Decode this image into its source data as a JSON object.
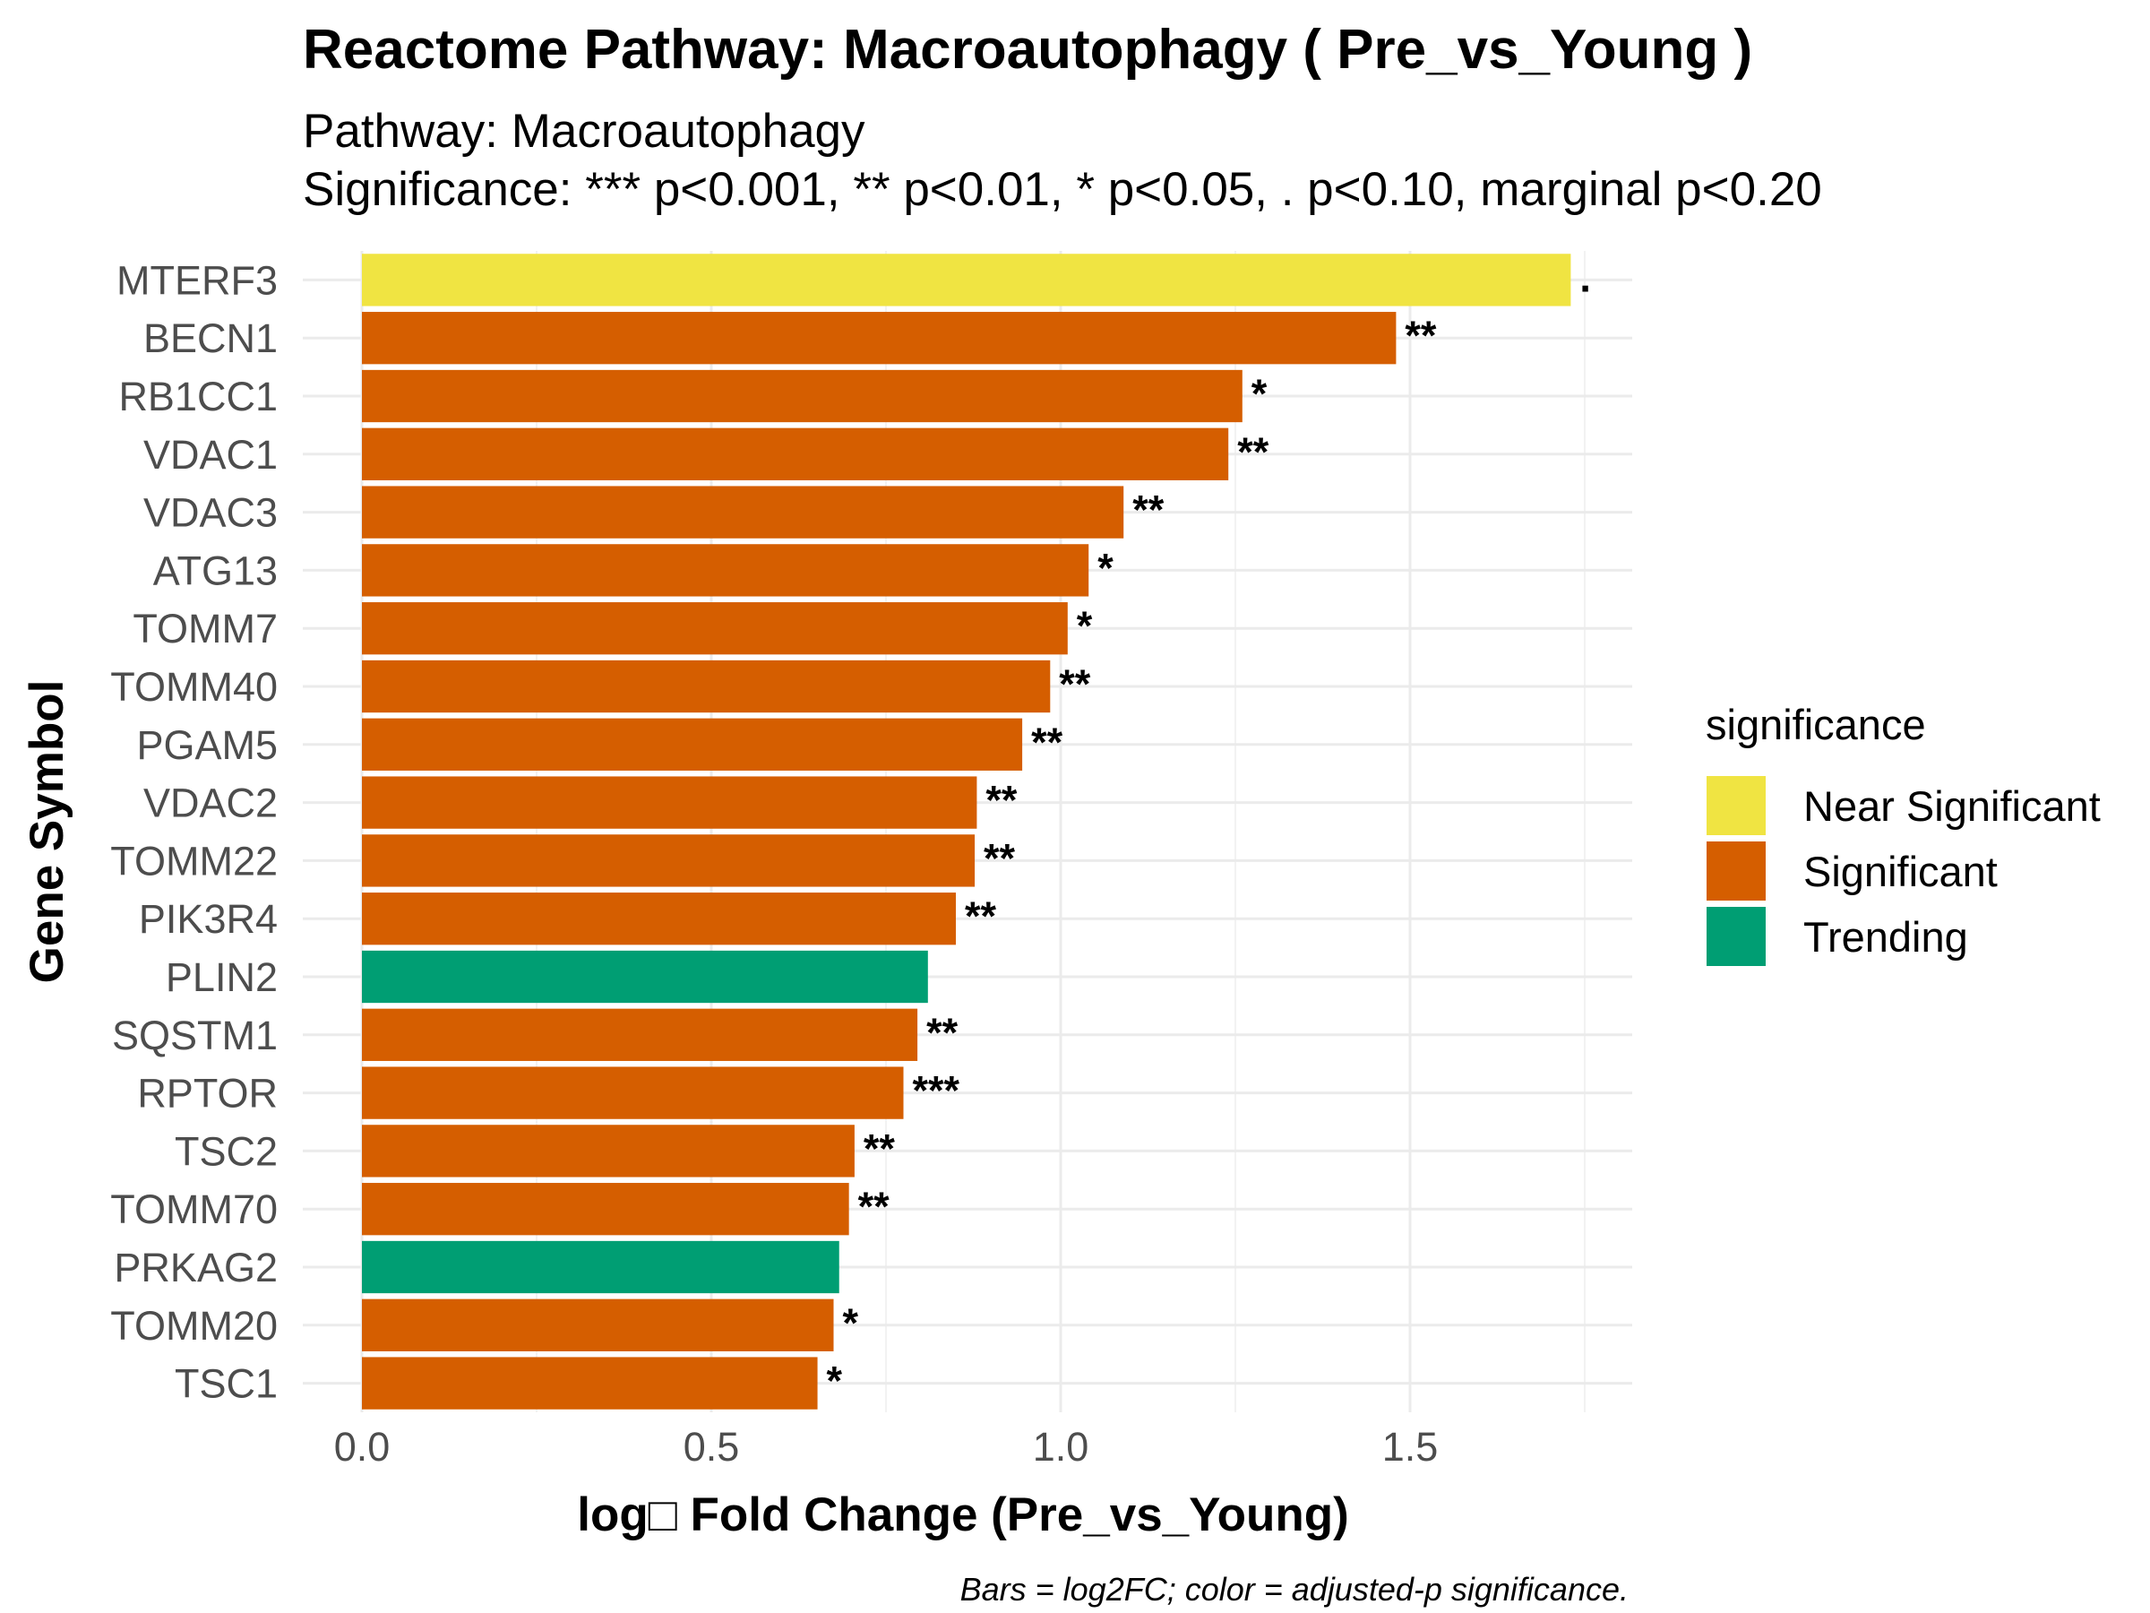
{
  "chart_data": {
    "type": "bar",
    "orientation": "horizontal",
    "title": "Reactome Pathway: Macroautophagy ( Pre_vs_Young )",
    "subtitle_lines": [
      "Pathway: Macroautophagy",
      "Significance: *** p<0.001, ** p<0.01, * p<0.05, . p<0.10, marginal p<0.20"
    ],
    "xlabel": "log□ Fold Change (Pre_vs_Young)",
    "ylabel": "Gene Symbol",
    "caption": "Bars = log2FC; color = adjusted-p significance.",
    "xlim": [
      0,
      1.75
    ],
    "x_ticks": [
      0.0,
      0.5,
      1.0,
      1.5
    ],
    "x_tick_labels": [
      "0.0",
      "0.5",
      "1.0",
      "1.5"
    ],
    "grid": true,
    "legend": {
      "title": "significance",
      "placement": "right",
      "entries": [
        {
          "label": "Near Significant",
          "color": "#F0E442"
        },
        {
          "label": "Significant",
          "color": "#D55E00"
        },
        {
          "label": "Trending",
          "color": "#009E73"
        }
      ]
    },
    "bars": [
      {
        "gene": "MTERF3",
        "value": 1.73,
        "significance": "Near Significant",
        "mark": "."
      },
      {
        "gene": "BECN1",
        "value": 1.48,
        "significance": "Significant",
        "mark": "**"
      },
      {
        "gene": "RB1CC1",
        "value": 1.26,
        "significance": "Significant",
        "mark": "*"
      },
      {
        "gene": "VDAC1",
        "value": 1.24,
        "significance": "Significant",
        "mark": "**"
      },
      {
        "gene": "VDAC3",
        "value": 1.09,
        "significance": "Significant",
        "mark": "**"
      },
      {
        "gene": "ATG13",
        "value": 1.04,
        "significance": "Significant",
        "mark": "*"
      },
      {
        "gene": "TOMM7",
        "value": 1.01,
        "significance": "Significant",
        "mark": "*"
      },
      {
        "gene": "TOMM40",
        "value": 0.985,
        "significance": "Significant",
        "mark": "**"
      },
      {
        "gene": "PGAM5",
        "value": 0.945,
        "significance": "Significant",
        "mark": "**"
      },
      {
        "gene": "VDAC2",
        "value": 0.88,
        "significance": "Significant",
        "mark": "**"
      },
      {
        "gene": "TOMM22",
        "value": 0.877,
        "significance": "Significant",
        "mark": "**"
      },
      {
        "gene": "PIK3R4",
        "value": 0.85,
        "significance": "Significant",
        "mark": "**"
      },
      {
        "gene": "PLIN2",
        "value": 0.81,
        "significance": "Trending",
        "mark": ""
      },
      {
        "gene": "SQSTM1",
        "value": 0.795,
        "significance": "Significant",
        "mark": "**"
      },
      {
        "gene": "RPTOR",
        "value": 0.775,
        "significance": "Significant",
        "mark": "***"
      },
      {
        "gene": "TSC2",
        "value": 0.705,
        "significance": "Significant",
        "mark": "**"
      },
      {
        "gene": "TOMM70",
        "value": 0.697,
        "significance": "Significant",
        "mark": "**"
      },
      {
        "gene": "PRKAG2",
        "value": 0.683,
        "significance": "Trending",
        "mark": ""
      },
      {
        "gene": "TOMM20",
        "value": 0.675,
        "significance": "Significant",
        "mark": "*"
      },
      {
        "gene": "TSC1",
        "value": 0.652,
        "significance": "Significant",
        "mark": "*"
      }
    ]
  }
}
